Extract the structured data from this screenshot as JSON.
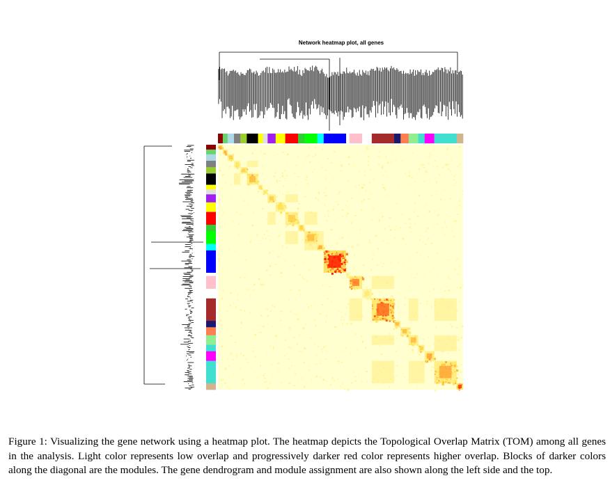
{
  "figure": {
    "title": "Network heatmap plot, all genes",
    "caption_label": "Figure 1:",
    "caption_text": "Visualizing the gene network using a heatmap plot. The heatmap depicts the Topological Overlap Matrix (TOM) among all genes in the analysis. Light color represents low overlap and progressively darker red color represents higher overlap. Blocks of darker colors along the diagonal are the modules. The gene dendrogram and module assignment are also shown along the left side and the top."
  },
  "heatmap": {
    "background_color": "#ffffd0",
    "low_color": "#ffffcc",
    "mid_color": "#ffe24d",
    "high_color": "#ff1a00",
    "module_colors": [
      "#8b0000",
      "#6ad36a",
      "#add8e6",
      "#808080",
      "#9acd32",
      "#000000",
      "#ffff00",
      "#e0e0e0",
      "#a020f0",
      "#ffff00",
      "#ff0000",
      "#32cd32",
      "#00ff00",
      "#00ffff",
      "#0000ff",
      "#ffffff",
      "#ffc0cb",
      "#ffffff",
      "#a52a2a",
      "#191970",
      "#ff7f50",
      "#90ee90",
      "#40e0d0",
      "#ff00ff",
      "#40e0d0",
      "#d2b48c"
    ],
    "modules": [
      {
        "color": "darkred",
        "hex": "#8b0000",
        "weight": 1.5,
        "intensity": 0.6
      },
      {
        "color": "lightgreen",
        "hex": "#6ad36a",
        "weight": 1.5,
        "intensity": 0.6
      },
      {
        "color": "lightblue",
        "hex": "#add8e6",
        "weight": 2,
        "intensity": 0.5
      },
      {
        "color": "grey",
        "hex": "#808080",
        "weight": 2,
        "intensity": 0.4
      },
      {
        "color": "greenyellow",
        "hex": "#9acd32",
        "weight": 2,
        "intensity": 0.5
      },
      {
        "color": "black",
        "hex": "#000000",
        "weight": 3.5,
        "intensity": 0.55
      },
      {
        "color": "yellow",
        "hex": "#ffff00",
        "weight": 1.5,
        "intensity": 0.45
      },
      {
        "color": "lightgrey",
        "hex": "#e0e0e0",
        "weight": 1.5,
        "intensity": 0.4
      },
      {
        "color": "purple",
        "hex": "#a020f0",
        "weight": 2.5,
        "intensity": 0.5
      },
      {
        "color": "yellow",
        "hex": "#ffff00",
        "weight": 3,
        "intensity": 0.45
      },
      {
        "color": "red",
        "hex": "#ff0000",
        "weight": 4,
        "intensity": 0.5
      },
      {
        "color": "limegreen",
        "hex": "#32cd32",
        "weight": 2,
        "intensity": 0.5
      },
      {
        "color": "green",
        "hex": "#00ff00",
        "weight": 4,
        "intensity": 0.55
      },
      {
        "color": "cyan",
        "hex": "#00ffff",
        "weight": 2,
        "intensity": 0.6
      },
      {
        "color": "blue",
        "hex": "#0000ff",
        "weight": 7,
        "intensity": 0.95
      },
      {
        "color": "white",
        "hex": "#ffffff",
        "weight": 1,
        "intensity": 0.3
      },
      {
        "color": "pink",
        "hex": "#ffc0cb",
        "weight": 4,
        "intensity": 0.7
      },
      {
        "color": "white",
        "hex": "#ffffff",
        "weight": 3,
        "intensity": 0.3
      },
      {
        "color": "brown",
        "hex": "#a52a2a",
        "weight": 7,
        "intensity": 0.75
      },
      {
        "color": "midnightblue",
        "hex": "#191970",
        "weight": 2,
        "intensity": 0.55
      },
      {
        "color": "coral",
        "hex": "#ff7f50",
        "weight": 2.5,
        "intensity": 0.55
      },
      {
        "color": "lightgreen",
        "hex": "#90ee90",
        "weight": 3,
        "intensity": 0.55
      },
      {
        "color": "turquoise",
        "hex": "#40e0d0",
        "weight": 2,
        "intensity": 0.5
      },
      {
        "color": "magenta",
        "hex": "#ff00ff",
        "weight": 3,
        "intensity": 0.6
      },
      {
        "color": "turquoise",
        "hex": "#40e0d0",
        "weight": 7,
        "intensity": 0.6
      },
      {
        "color": "tan",
        "hex": "#d2b48c",
        "weight": 2,
        "intensity": 0.9
      }
    ]
  }
}
